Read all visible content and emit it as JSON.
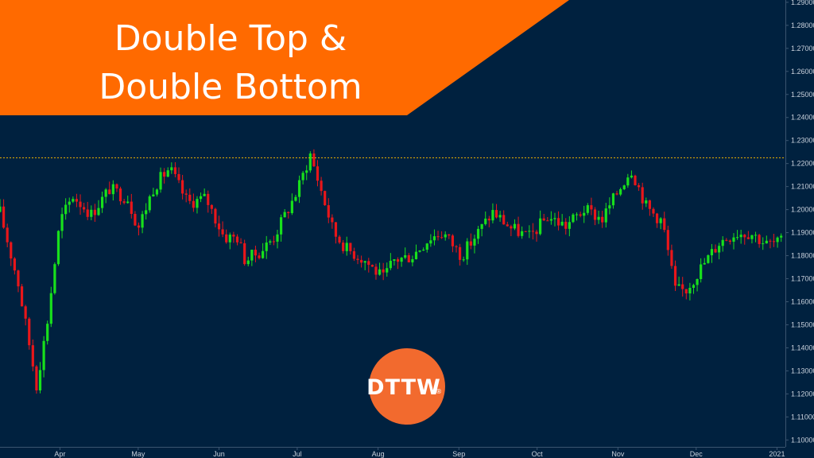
{
  "title": {
    "line1": "Double Top &",
    "line2": "Double Bottom",
    "banner_color": "#ff6a00"
  },
  "logo": {
    "text": "DTTW",
    "registered_mark": "®",
    "color": "#f26a2e"
  },
  "colors": {
    "background": "#00213f",
    "up": "#18e01c",
    "down": "#e8161a",
    "resistance_line": "#e5b000"
  },
  "chart_data": {
    "type": "candlestick",
    "x_tick_labels": [
      "Apr",
      "May",
      "Jun",
      "Jul",
      "Aug",
      "Sep",
      "Oct",
      "Nov",
      "Dec",
      "2021"
    ],
    "y_tick_labels": [
      "1.29000",
      "1.28000",
      "1.27000",
      "1.26000",
      "1.25000",
      "1.24000",
      "1.23000",
      "1.22000",
      "1.21000",
      "1.20000",
      "1.19000",
      "1.18000",
      "1.17000",
      "1.16000",
      "1.15000",
      "1.14000",
      "1.13000",
      "1.12000",
      "1.11000",
      "1.10000"
    ],
    "ylim": [
      1.097,
      1.291
    ],
    "resistance_level": 1.2225,
    "pivots": [
      [
        "2020-03-09",
        1.199
      ],
      [
        "2020-03-16",
        1.168
      ],
      [
        "2020-03-23",
        1.124
      ],
      [
        "2020-03-27",
        1.15
      ],
      [
        "2020-04-01",
        1.195
      ],
      [
        "2020-04-06",
        1.206
      ],
      [
        "2020-04-13",
        1.198
      ],
      [
        "2020-04-20",
        1.209
      ],
      [
        "2020-04-27",
        1.205
      ],
      [
        "2020-05-01",
        1.192
      ],
      [
        "2020-05-07",
        1.21
      ],
      [
        "2020-05-13",
        1.218
      ],
      [
        "2020-05-20",
        1.203
      ],
      [
        "2020-05-27",
        1.205
      ],
      [
        "2020-06-03",
        1.188
      ],
      [
        "2020-06-08",
        1.188
      ],
      [
        "2020-06-11",
        1.178
      ],
      [
        "2020-06-17",
        1.182
      ],
      [
        "2020-06-22",
        1.188
      ],
      [
        "2020-06-26",
        1.197
      ],
      [
        "2020-07-01",
        1.208
      ],
      [
        "2020-07-06",
        1.224
      ],
      [
        "2020-07-10",
        1.209
      ],
      [
        "2020-07-15",
        1.19
      ],
      [
        "2020-07-20",
        1.183
      ],
      [
        "2020-07-27",
        1.178
      ],
      [
        "2020-08-03",
        1.17
      ],
      [
        "2020-08-07",
        1.178
      ],
      [
        "2020-08-14",
        1.18
      ],
      [
        "2020-08-21",
        1.188
      ],
      [
        "2020-08-26",
        1.19
      ],
      [
        "2020-09-02",
        1.18
      ],
      [
        "2020-09-07",
        1.188
      ],
      [
        "2020-09-14",
        1.199
      ],
      [
        "2020-09-21",
        1.192
      ],
      [
        "2020-09-28",
        1.188
      ],
      [
        "2020-10-05",
        1.197
      ],
      [
        "2020-10-12",
        1.193
      ],
      [
        "2020-10-19",
        1.2
      ],
      [
        "2020-10-26",
        1.196
      ],
      [
        "2020-11-02",
        1.21
      ],
      [
        "2020-11-06",
        1.218
      ],
      [
        "2020-11-12",
        1.201
      ],
      [
        "2020-11-18",
        1.195
      ],
      [
        "2020-11-23",
        1.165
      ],
      [
        "2020-11-27",
        1.165
      ],
      [
        "2020-12-03",
        1.175
      ],
      [
        "2020-12-10",
        1.186
      ],
      [
        "2020-12-16",
        1.19
      ],
      [
        "2020-12-22",
        1.19
      ],
      [
        "2020-12-28",
        1.185
      ],
      [
        "2021-01-04",
        1.186
      ],
      [
        "2021-01-08",
        1.182
      ],
      [
        "2021-01-14",
        1.178
      ],
      [
        "2021-01-20",
        1.188
      ],
      [
        "2021-01-25",
        1.181
      ],
      [
        "2021-01-29",
        1.183
      ],
      [
        "2021-02-03",
        1.19
      ],
      [
        "2021-02-08",
        1.212
      ],
      [
        "2021-02-12",
        1.2
      ],
      [
        "2021-02-18",
        1.205
      ],
      [
        "2021-02-23",
        1.218
      ],
      [
        "2021-03-01",
        1.204
      ],
      [
        "2021-03-05",
        1.196
      ],
      [
        "2021-03-10",
        1.19
      ],
      [
        "2021-03-15",
        1.178
      ],
      [
        "2021-03-19",
        1.18
      ],
      [
        "2021-03-23",
        1.196
      ],
      [
        "2021-03-29",
        1.21
      ],
      [
        "2021-04-02",
        1.192
      ],
      [
        "2021-04-06",
        1.21
      ],
      [
        "2021-04-09",
        1.195
      ],
      [
        "2021-04-13",
        1.2
      ],
      [
        "2021-04-15",
        1.203
      ]
    ]
  }
}
